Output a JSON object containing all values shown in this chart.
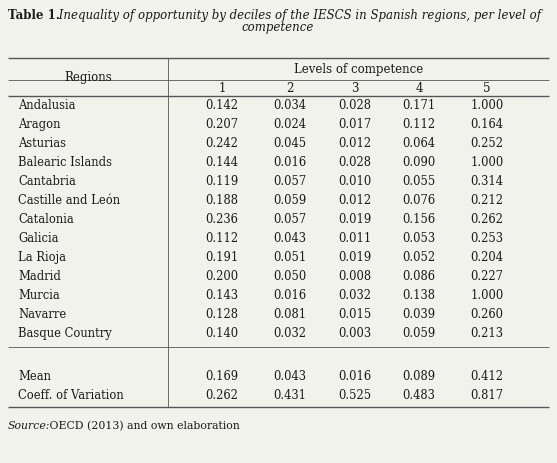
{
  "title_bold": "Table 1.",
  "title_italic": " Inequality of opportunity by deciles of the IESCS in Spanish regions, per level of\ncompetence",
  "col_header_main": "Levels of competence",
  "col_header_sub": [
    "1",
    "2",
    "3",
    "4",
    "5"
  ],
  "row_header": "Regions",
  "regions": [
    "Andalusia",
    "Aragon",
    "Asturias",
    "Balearic Islands",
    "Cantabria",
    "Castille and León",
    "Catalonia",
    "Galicia",
    "La Rioja",
    "Madrid",
    "Murcia",
    "Navarre",
    "Basque Country"
  ],
  "data": [
    [
      0.142,
      0.034,
      0.028,
      0.171,
      1.0
    ],
    [
      0.207,
      0.024,
      0.017,
      0.112,
      0.164
    ],
    [
      0.242,
      0.045,
      0.012,
      0.064,
      0.252
    ],
    [
      0.144,
      0.016,
      0.028,
      0.09,
      1.0
    ],
    [
      0.119,
      0.057,
      0.01,
      0.055,
      0.314
    ],
    [
      0.188,
      0.059,
      0.012,
      0.076,
      0.212
    ],
    [
      0.236,
      0.057,
      0.019,
      0.156,
      0.262
    ],
    [
      0.112,
      0.043,
      0.011,
      0.053,
      0.253
    ],
    [
      0.191,
      0.051,
      0.019,
      0.052,
      0.204
    ],
    [
      0.2,
      0.05,
      0.008,
      0.086,
      0.227
    ],
    [
      0.143,
      0.016,
      0.032,
      0.138,
      1.0
    ],
    [
      0.128,
      0.081,
      0.015,
      0.039,
      0.26
    ],
    [
      0.14,
      0.032,
      0.003,
      0.059,
      0.213
    ]
  ],
  "summary_labels": [
    "Mean",
    "Coeff. of Variation"
  ],
  "summary_data": [
    [
      0.169,
      0.043,
      0.016,
      0.089,
      0.412
    ],
    [
      0.262,
      0.431,
      0.525,
      0.483,
      0.817
    ]
  ],
  "source_italic": "Source:",
  "source_normal": " OECD (2013) and own elaboration",
  "bg_color": "#f2f2ed",
  "text_color": "#1a1a1a",
  "line_color": "#555555"
}
